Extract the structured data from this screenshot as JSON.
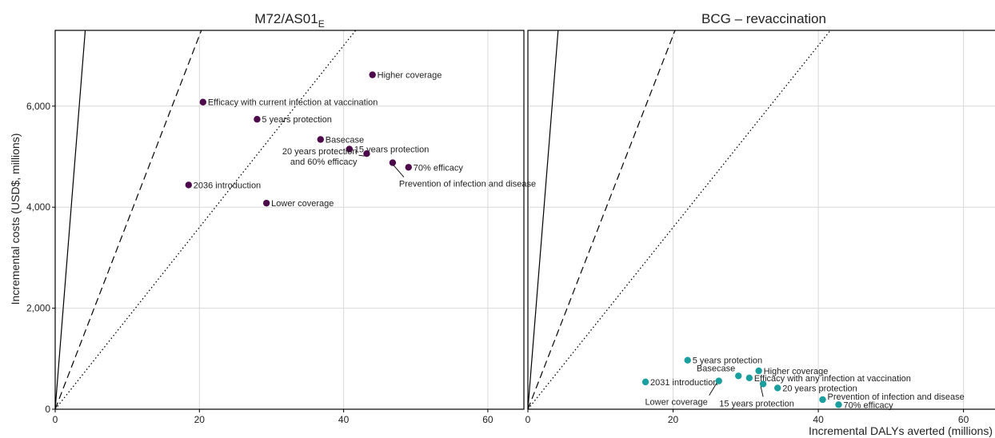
{
  "figure": {
    "ylabel": "Incremental costs (USD$, millions)",
    "xlabel": "Incremental DALYs averted (millions)"
  },
  "chart_data": [
    {
      "type": "scatter",
      "title": "M72/AS01",
      "title_subscript": "E",
      "xlim": [
        0,
        65
      ],
      "ylim": [
        0,
        7500
      ],
      "xticks": [
        0,
        20,
        40,
        60
      ],
      "xtick_labels": [
        "0",
        "20",
        "40",
        "60"
      ],
      "yticks": [
        0,
        2000,
        4000,
        6000
      ],
      "ytick_labels": [
        "0",
        "2,000",
        "4,000",
        "6,000"
      ],
      "grid": true,
      "color": "#4d0a4a",
      "threshold_lines": [
        {
          "style": "solid",
          "slope": 1800
        },
        {
          "style": "dashed",
          "slope": 370
        },
        {
          "style": "dotted",
          "slope": 180
        }
      ],
      "points": [
        {
          "label": "Higher coverage",
          "x": 44.0,
          "y": 6620
        },
        {
          "label": "Efficacy with current infection at vaccination",
          "x": 20.5,
          "y": 6080
        },
        {
          "label": "5 years protection",
          "x": 28.0,
          "y": 5740
        },
        {
          "label": "Basecase",
          "x": 36.8,
          "y": 5340
        },
        {
          "label": "15 years protection",
          "x": 40.8,
          "y": 5150
        },
        {
          "label": "20 years protection\nand 60% efficacy",
          "x": 43.2,
          "y": 5060
        },
        {
          "label": "Prevention of infection and disease",
          "x": 46.8,
          "y": 4880
        },
        {
          "label": "70% efficacy",
          "x": 49.0,
          "y": 4790
        },
        {
          "label": "2036 introduction",
          "x": 18.5,
          "y": 4440
        },
        {
          "label": "Lower coverage",
          "x": 29.3,
          "y": 4080
        }
      ]
    },
    {
      "type": "scatter",
      "title": "BCG – revaccination",
      "xlim": [
        0,
        65
      ],
      "ylim": [
        0,
        7500
      ],
      "xticks": [
        0,
        20,
        40,
        60
      ],
      "xtick_labels": [
        "0",
        "20",
        "40",
        "60"
      ],
      "grid": true,
      "color": "#1a9e9e",
      "threshold_lines": [
        {
          "style": "solid",
          "slope": 1800
        },
        {
          "style": "dashed",
          "slope": 370
        },
        {
          "style": "dotted",
          "slope": 180
        }
      ],
      "points": [
        {
          "label": "5 years protection",
          "x": 22.0,
          "y": 970
        },
        {
          "label": "Higher coverage",
          "x": 31.8,
          "y": 760
        },
        {
          "label": "Basecase",
          "x": 29.0,
          "y": 660
        },
        {
          "label": "Efficacy with any infection at vaccination",
          "x": 30.5,
          "y": 620
        },
        {
          "label": "2031 introduction",
          "x": 16.2,
          "y": 540
        },
        {
          "label": "Lower coverage",
          "x": 26.3,
          "y": 560
        },
        {
          "label": "20 years protection",
          "x": 34.4,
          "y": 420
        },
        {
          "label": "15 years protection",
          "x": 32.4,
          "y": 500
        },
        {
          "label": "Prevention of infection and disease",
          "x": 40.6,
          "y": 190
        },
        {
          "label": "70% efficacy",
          "x": 42.8,
          "y": 90
        }
      ]
    }
  ]
}
